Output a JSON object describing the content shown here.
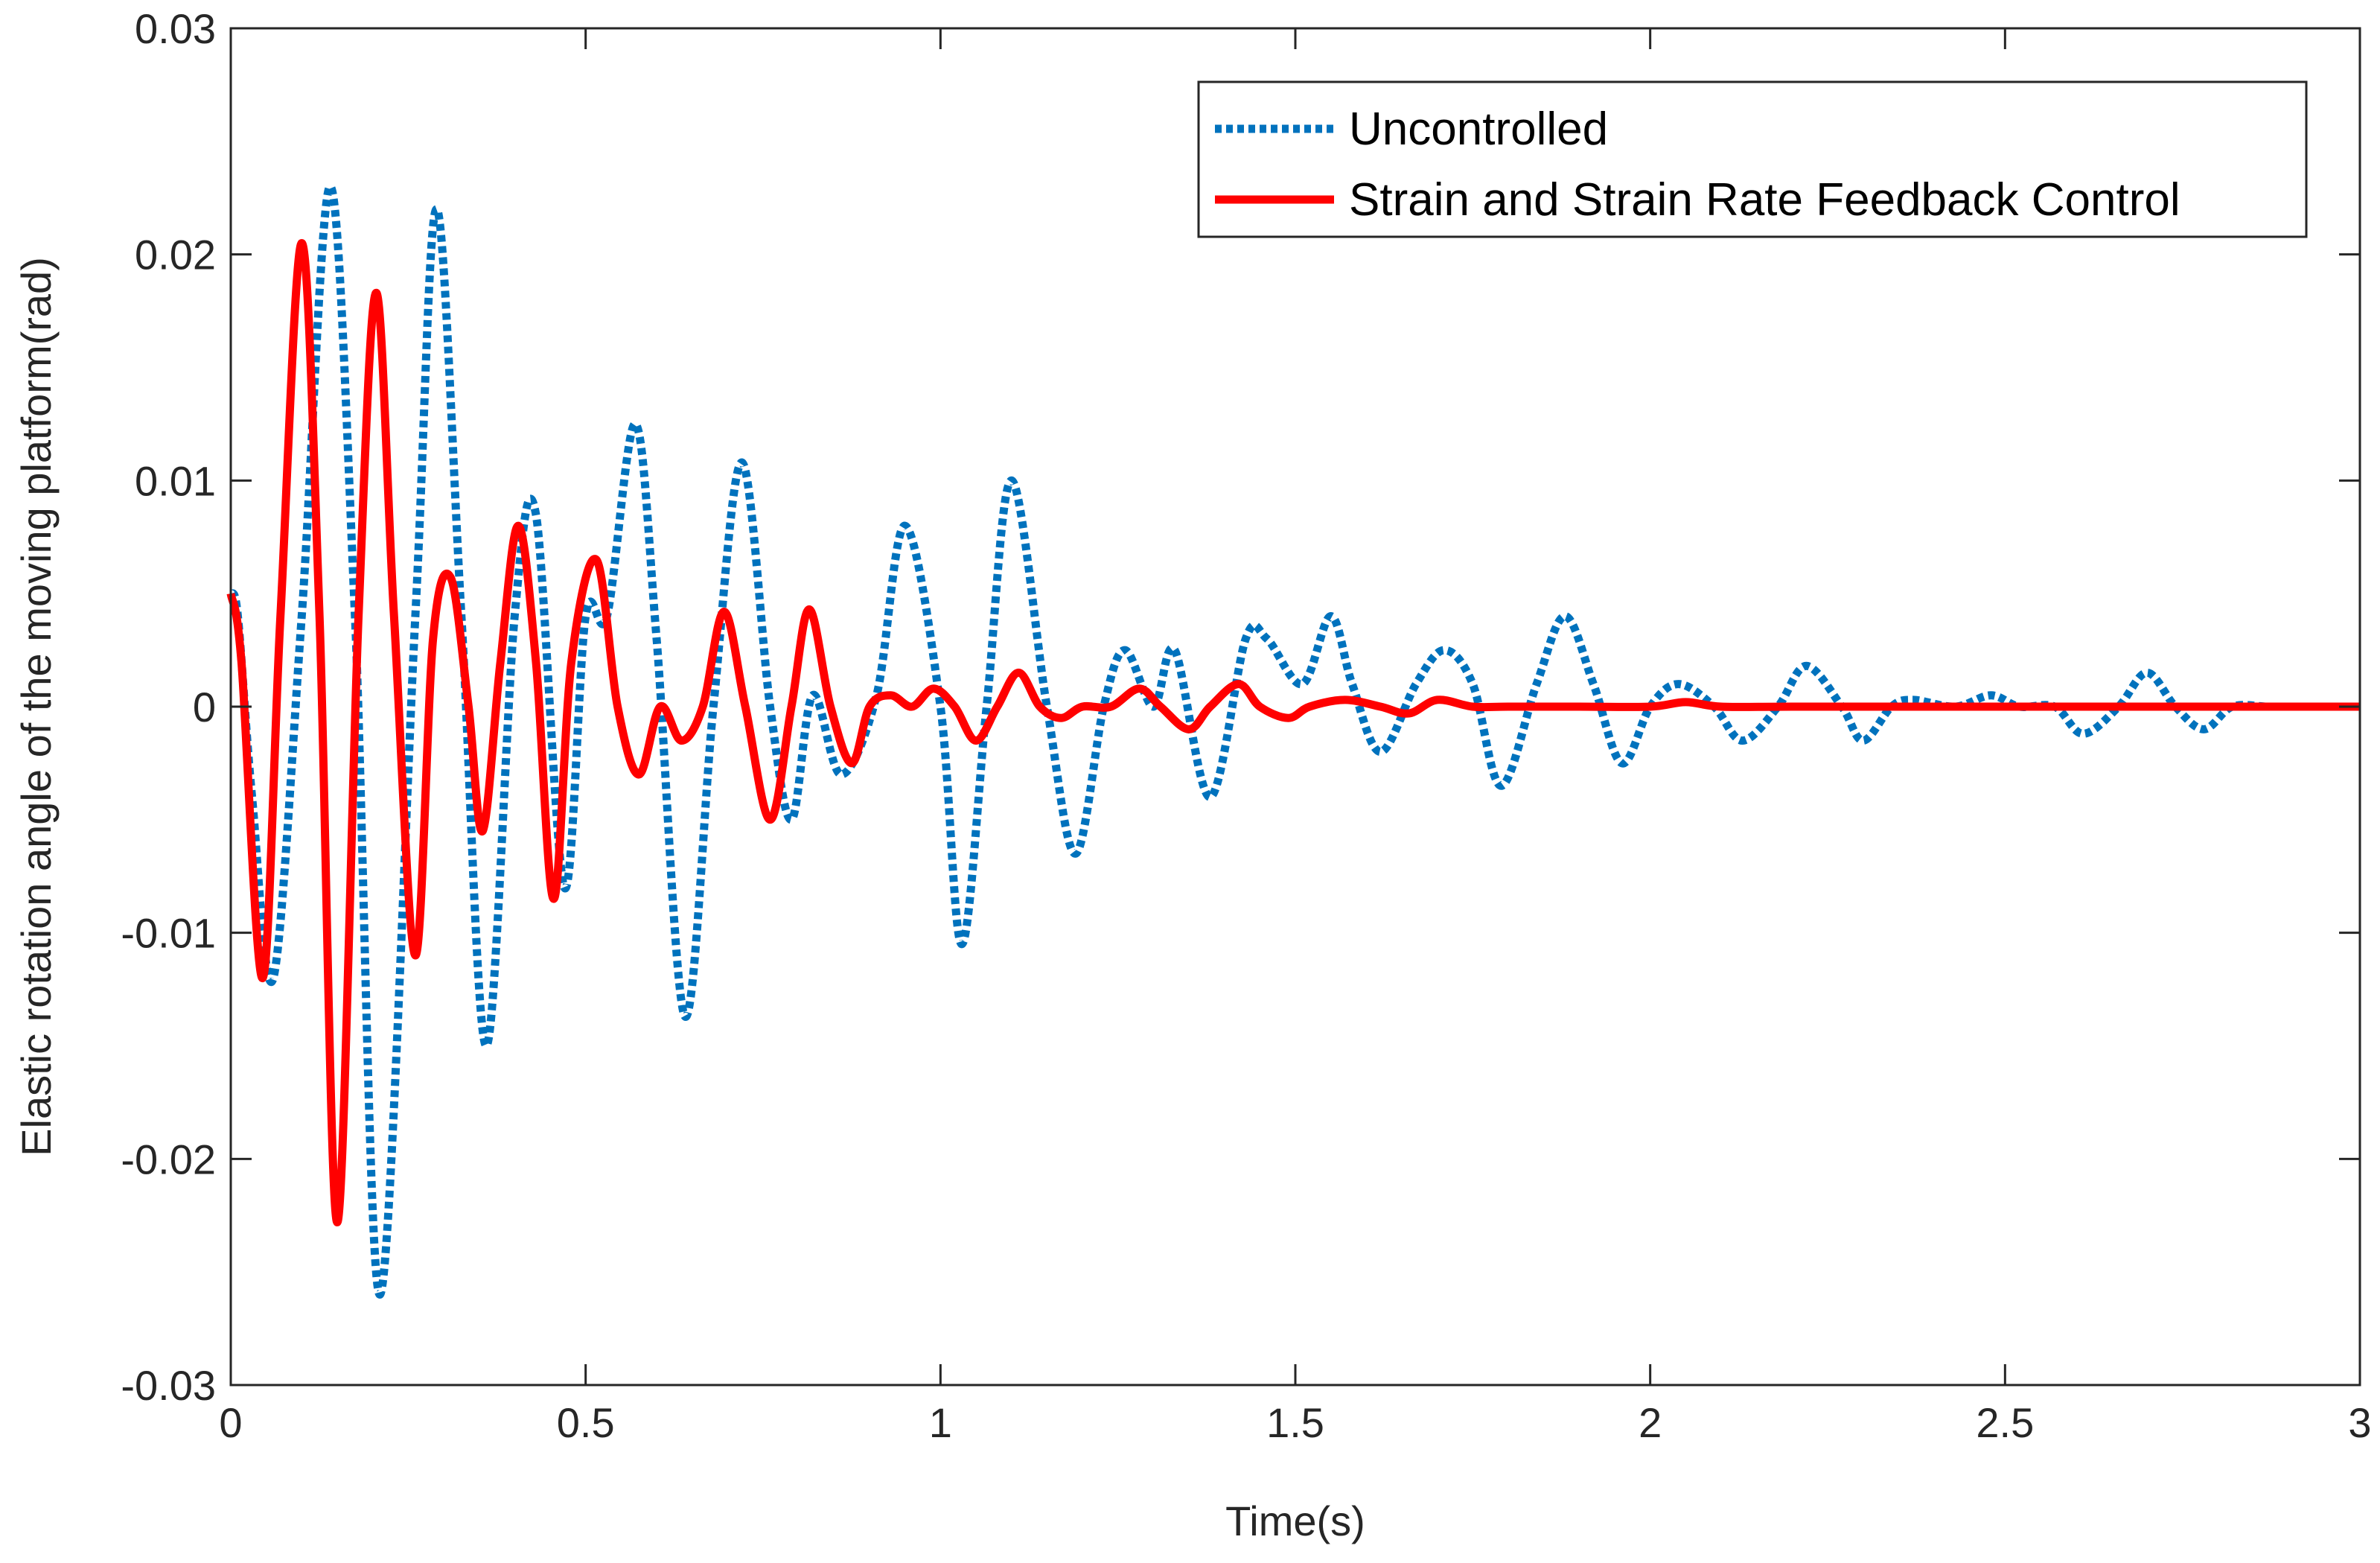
{
  "chart_data": {
    "type": "line",
    "title": "",
    "xlabel": "Time(s)",
    "ylabel": "Elastic rotation angle of the moving platform(rad)",
    "xlim": [
      0,
      3
    ],
    "ylim": [
      -0.03,
      0.03
    ],
    "xticks": [
      0,
      0.5,
      1,
      1.5,
      2,
      2.5,
      3
    ],
    "xtick_labels": [
      "0",
      "0.5",
      "1",
      "1.5",
      "2",
      "2.5",
      "3"
    ],
    "yticks": [
      -0.03,
      -0.02,
      -0.01,
      0,
      0.01,
      0.02,
      0.03
    ],
    "ytick_labels": [
      "-0.03",
      "-0.02",
      "-0.01",
      "0",
      "0.01",
      "0.02",
      "0.03"
    ],
    "grid": false,
    "legend_position": "top-right",
    "series": [
      {
        "name": "Uncontrolled",
        "style": "dotted",
        "color": "#0072BD",
        "x": [
          0,
          0.01,
          0.03,
          0.06,
          0.1,
          0.14,
          0.175,
          0.21,
          0.26,
          0.29,
          0.325,
          0.36,
          0.4,
          0.43,
          0.47,
          0.5,
          0.53,
          0.57,
          0.6,
          0.64,
          0.68,
          0.72,
          0.76,
          0.79,
          0.82,
          0.86,
          0.91,
          0.95,
          1.0,
          1.03,
          1.065,
          1.1,
          1.15,
          1.19,
          1.23,
          1.26,
          1.3,
          1.33,
          1.38,
          1.43,
          1.46,
          1.51,
          1.55,
          1.58,
          1.62,
          1.67,
          1.71,
          1.75,
          1.79,
          1.84,
          1.88,
          1.92,
          1.96,
          2.0,
          2.04,
          2.09,
          2.13,
          2.18,
          2.22,
          2.27,
          2.3,
          2.34,
          2.37,
          2.43,
          2.48,
          2.52,
          2.57,
          2.61,
          2.66,
          2.7,
          2.74,
          2.78,
          2.82,
          2.87,
          2.92,
          2.96,
          3.0
        ],
        "values": [
          0.005,
          0.004,
          -0.004,
          -0.012,
          0.004,
          0.023,
          0.004,
          -0.026,
          0.004,
          0.022,
          0.004,
          -0.015,
          0.004,
          0.0085,
          -0.008,
          0.004,
          0.004,
          0.0125,
          0.003,
          -0.0137,
          0.0,
          0.0108,
          0.0,
          -0.005,
          0.0005,
          -0.003,
          0.0005,
          0.008,
          0.0,
          -0.0105,
          0.0,
          0.01,
          0.0,
          -0.0065,
          0.0,
          0.0025,
          0.0,
          0.0025,
          -0.004,
          0.003,
          0.003,
          0.001,
          0.004,
          0.001,
          -0.002,
          0.001,
          0.0025,
          0.001,
          -0.0035,
          0.001,
          0.004,
          0.001,
          -0.0025,
          0.0,
          0.001,
          0.0,
          -0.0015,
          0.0,
          0.0018,
          0.0,
          -0.0015,
          0.0,
          0.0003,
          0.0,
          0.0005,
          0.0,
          0.0,
          -0.0012,
          0.0,
          0.0015,
          0.0,
          -0.001,
          0.0,
          0.0,
          0.0,
          0.0,
          0.0
        ]
      },
      {
        "name": "Strain and Strain Rate Feedback Control",
        "style": "solid",
        "color": "#FF0000",
        "x": [
          0,
          0.015,
          0.045,
          0.07,
          0.1,
          0.125,
          0.15,
          0.18,
          0.205,
          0.23,
          0.26,
          0.285,
          0.31,
          0.335,
          0.355,
          0.38,
          0.405,
          0.43,
          0.455,
          0.48,
          0.515,
          0.545,
          0.575,
          0.605,
          0.635,
          0.665,
          0.695,
          0.725,
          0.76,
          0.79,
          0.815,
          0.845,
          0.875,
          0.9,
          0.93,
          0.96,
          0.99,
          1.02,
          1.05,
          1.08,
          1.11,
          1.14,
          1.17,
          1.2,
          1.24,
          1.28,
          1.31,
          1.35,
          1.38,
          1.42,
          1.45,
          1.49,
          1.52,
          1.57,
          1.62,
          1.66,
          1.7,
          1.75,
          1.8,
          1.9,
          2.0,
          2.05,
          2.1,
          2.2,
          2.4,
          2.6,
          2.8,
          3.0
        ],
        "values": [
          0.005,
          0.002,
          -0.012,
          0.004,
          0.0205,
          0.004,
          -0.0228,
          0.004,
          0.0183,
          0.004,
          -0.011,
          0.003,
          0.0057,
          0.0,
          -0.0055,
          0.002,
          0.008,
          0.002,
          -0.0085,
          0.002,
          0.0065,
          0.0,
          -0.003,
          0.0,
          -0.0015,
          0.0,
          0.0042,
          0.0,
          -0.005,
          0.0,
          0.0043,
          0.0,
          -0.0025,
          0.0,
          0.0005,
          0.0,
          0.0008,
          0.0,
          -0.0015,
          0.0,
          0.0015,
          0.0,
          -0.0005,
          0.0,
          0.0,
          0.0008,
          0.0,
          -0.001,
          0.0,
          0.001,
          0.0,
          -0.0005,
          0.0,
          0.0003,
          0.0,
          -0.0003,
          0.0003,
          0.0,
          0.0,
          0.0,
          0.0,
          0.0002,
          0.0,
          0.0,
          0.0,
          0.0,
          0.0,
          0.0
        ]
      }
    ]
  }
}
